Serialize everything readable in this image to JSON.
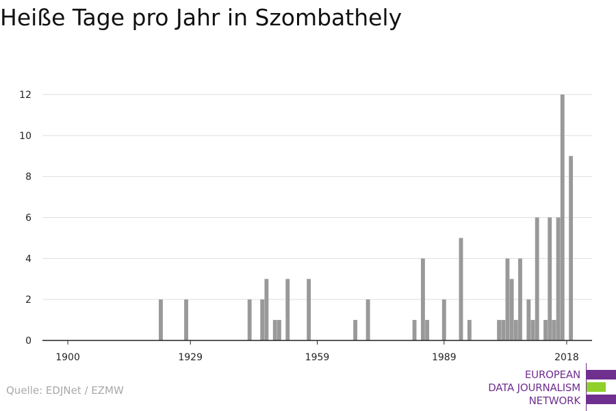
{
  "title": "Heiße Tage pro Jahr in Szombathely",
  "source": "Quelle: EDJNet / EZMW",
  "logo": {
    "lines": [
      "EUROPEAN",
      "DATA JOURNALISM",
      "NETWORK"
    ],
    "colors": [
      "#6f2f8f",
      "#8fd12a",
      "#6f2f8f"
    ]
  },
  "chart_data": {
    "type": "bar",
    "title": "Heiße Tage pro Jahr in Szombathely",
    "xlabel": "",
    "ylabel": "",
    "xlim": [
      1894,
      2024
    ],
    "ylim": [
      0,
      12
    ],
    "xticks": [
      1900,
      1929,
      1959,
      1989,
      2018
    ],
    "yticks": [
      0,
      2,
      4,
      6,
      8,
      10,
      12
    ],
    "grid": true,
    "bar_color": "#999999",
    "x": [
      1922,
      1928,
      1943,
      1946,
      1947,
      1949,
      1950,
      1952,
      1957,
      1968,
      1971,
      1982,
      1984,
      1985,
      1989,
      1993,
      1995,
      2002,
      2003,
      2004,
      2005,
      2006,
      2007,
      2008,
      2009,
      2010,
      2011,
      2012,
      2013,
      2014,
      2015,
      2016,
      2017,
      2018,
      2019
    ],
    "values": [
      2,
      2,
      2,
      2,
      3,
      1,
      1,
      3,
      3,
      1,
      2,
      1,
      4,
      1,
      2,
      5,
      1,
      1,
      1,
      4,
      3,
      1,
      4,
      0,
      2,
      1,
      6,
      0,
      1,
      6,
      1,
      6,
      12,
      0,
      9
    ]
  }
}
